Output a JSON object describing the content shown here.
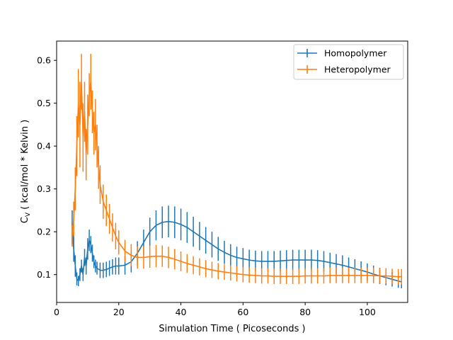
{
  "chart_data": {
    "type": "line",
    "xlabel": "Simulation Time ( Picoseconds )",
    "ylabel_main": "C",
    "ylabel_sub": "V",
    "ylabel_rest": " ( kcal/mol * Kelvin )",
    "xlim": [
      0,
      113
    ],
    "ylim": [
      0.035,
      0.645
    ],
    "xticks": [
      0,
      20,
      40,
      60,
      80,
      100
    ],
    "yticks": [
      0.1,
      0.2,
      0.3,
      0.4,
      0.5,
      0.6
    ],
    "legend_position": "top-right",
    "series": [
      {
        "name": "Homopolymer",
        "color": "#1f77b4",
        "x": [
          5,
          5.5,
          6,
          6.5,
          7,
          7.5,
          8,
          8.5,
          9,
          9.5,
          10,
          10.5,
          11,
          11.5,
          12,
          12.5,
          13,
          14,
          15,
          16,
          17,
          18,
          19,
          20,
          22,
          24,
          26,
          28,
          30,
          32,
          34,
          36,
          38,
          40,
          42,
          44,
          46,
          48,
          50,
          52,
          54,
          56,
          58,
          60,
          62,
          64,
          66,
          68,
          70,
          72,
          74,
          76,
          78,
          80,
          82,
          84,
          86,
          88,
          90,
          92,
          94,
          96,
          98,
          100,
          102,
          104,
          106,
          108,
          110,
          111
        ],
        "y": [
          0.21,
          0.16,
          0.12,
          0.09,
          0.085,
          0.1,
          0.12,
          0.1,
          0.14,
          0.12,
          0.16,
          0.18,
          0.17,
          0.15,
          0.13,
          0.12,
          0.115,
          0.11,
          0.11,
          0.112,
          0.115,
          0.118,
          0.12,
          0.12,
          0.122,
          0.13,
          0.15,
          0.175,
          0.2,
          0.215,
          0.222,
          0.224,
          0.222,
          0.217,
          0.21,
          0.2,
          0.19,
          0.18,
          0.17,
          0.16,
          0.152,
          0.145,
          0.14,
          0.137,
          0.134,
          0.132,
          0.131,
          0.131,
          0.131,
          0.132,
          0.133,
          0.134,
          0.134,
          0.134,
          0.134,
          0.133,
          0.131,
          0.128,
          0.125,
          0.122,
          0.118,
          0.114,
          0.11,
          0.106,
          0.101,
          0.097,
          0.093,
          0.089,
          0.085,
          0.083
        ],
        "err": [
          0.04,
          0.03,
          0.025,
          0.015,
          0.012,
          0.015,
          0.015,
          0.015,
          0.02,
          0.02,
          0.025,
          0.025,
          0.02,
          0.02,
          0.015,
          0.015,
          0.015,
          0.018,
          0.018,
          0.018,
          0.018,
          0.018,
          0.02,
          0.02,
          0.022,
          0.025,
          0.028,
          0.03,
          0.033,
          0.035,
          0.037,
          0.037,
          0.037,
          0.037,
          0.036,
          0.035,
          0.033,
          0.031,
          0.03,
          0.028,
          0.027,
          0.026,
          0.025,
          0.025,
          0.024,
          0.024,
          0.024,
          0.024,
          0.024,
          0.024,
          0.024,
          0.024,
          0.024,
          0.024,
          0.024,
          0.024,
          0.024,
          0.023,
          0.023,
          0.023,
          0.022,
          0.022,
          0.021,
          0.02,
          0.02,
          0.019,
          0.018,
          0.017,
          0.016,
          0.015
        ]
      },
      {
        "name": "Heteropolymer",
        "color": "#ff7f0e",
        "x": [
          5,
          5.5,
          6,
          6.5,
          7,
          7.5,
          8,
          8.5,
          9,
          9.5,
          10,
          10.5,
          11,
          11.5,
          12,
          12.5,
          13,
          13.5,
          14,
          15,
          16,
          17,
          18,
          19,
          20,
          22,
          24,
          26,
          28,
          30,
          32,
          34,
          36,
          38,
          40,
          42,
          44,
          46,
          48,
          50,
          52,
          54,
          56,
          58,
          60,
          62,
          64,
          66,
          68,
          70,
          72,
          74,
          76,
          78,
          80,
          82,
          84,
          86,
          88,
          90,
          92,
          94,
          96,
          98,
          100,
          102,
          104,
          106,
          108,
          110,
          111
        ],
        "y": [
          0.19,
          0.23,
          0.3,
          0.4,
          0.5,
          0.45,
          0.55,
          0.42,
          0.48,
          0.38,
          0.45,
          0.52,
          0.55,
          0.48,
          0.43,
          0.45,
          0.4,
          0.35,
          0.31,
          0.27,
          0.25,
          0.23,
          0.21,
          0.19,
          0.175,
          0.155,
          0.145,
          0.14,
          0.14,
          0.142,
          0.143,
          0.143,
          0.14,
          0.136,
          0.131,
          0.126,
          0.122,
          0.118,
          0.114,
          0.111,
          0.108,
          0.106,
          0.104,
          0.102,
          0.1,
          0.099,
          0.098,
          0.097,
          0.097,
          0.096,
          0.096,
          0.096,
          0.096,
          0.096,
          0.097,
          0.097,
          0.097,
          0.097,
          0.098,
          0.098,
          0.098,
          0.098,
          0.098,
          0.098,
          0.098,
          0.098,
          0.097,
          0.097,
          0.096,
          0.095,
          0.095
        ],
        "err": [
          0.025,
          0.04,
          0.05,
          0.07,
          0.08,
          0.1,
          0.065,
          0.08,
          0.07,
          0.06,
          0.07,
          0.05,
          0.065,
          0.05,
          0.05,
          0.06,
          0.05,
          0.05,
          0.045,
          0.04,
          0.037,
          0.035,
          0.033,
          0.031,
          0.028,
          0.026,
          0.026,
          0.026,
          0.026,
          0.026,
          0.026,
          0.025,
          0.025,
          0.024,
          0.023,
          0.022,
          0.021,
          0.02,
          0.02,
          0.019,
          0.019,
          0.018,
          0.018,
          0.018,
          0.018,
          0.018,
          0.018,
          0.018,
          0.018,
          0.018,
          0.018,
          0.018,
          0.018,
          0.018,
          0.018,
          0.018,
          0.018,
          0.018,
          0.018,
          0.018,
          0.018,
          0.018,
          0.018,
          0.018,
          0.018,
          0.018,
          0.018,
          0.018,
          0.018,
          0.018,
          0.018
        ]
      }
    ]
  }
}
